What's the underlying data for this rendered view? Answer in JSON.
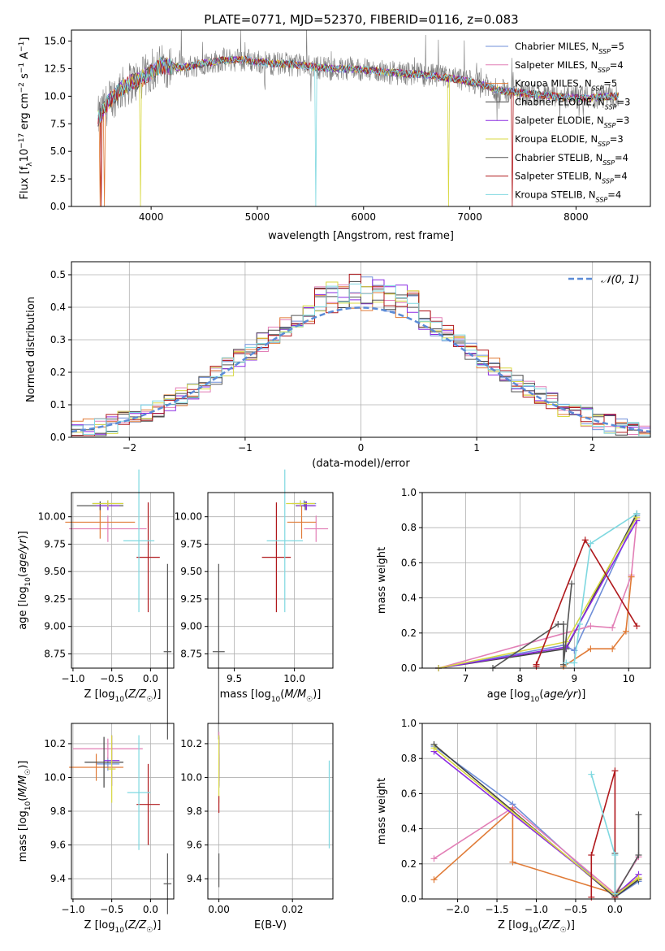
{
  "figure_title": "PLATE=0771, MJD=52370, FIBERID=0116, z=0.083",
  "colors": {
    "Chabrier MILES": "#6f8fd8",
    "Salpeter MILES": "#e27fb6",
    "Kroupa MILES": "#e07b37",
    "Chabrier ELODIE": "#444444",
    "Salpeter ELODIE": "#8a2be2",
    "Kroupa ELODIE": "#d8d840",
    "Chabrier STELIB": "#555555",
    "Salpeter STELIB": "#b0181c",
    "Kroupa STELIB": "#7fd8e0"
  },
  "chart_data": [
    {
      "type": "line",
      "title": "PLATE=0771, MJD=52370, FIBERID=0116, z=0.083",
      "xlabel": "wavelength [Angstrom, rest frame]",
      "ylabel": "Flux [f_λ 10^-17 erg cm^-2 s^-1 A^-1]",
      "xlim": [
        3250,
        8700
      ],
      "ylim": [
        0,
        16
      ],
      "xticks": [
        "4000",
        "5000",
        "6000",
        "7000",
        "8000"
      ],
      "yticks": [
        "0.0",
        "2.5",
        "5.0",
        "7.5",
        "10.0",
        "12.5",
        "15.0"
      ],
      "legend_position": "top-right",
      "legend": [
        "Chabrier MILES, N_SSP=5",
        "Salpeter MILES, N_SSP=4",
        "Kroupa MILES, N_SSP=5",
        "Chabrier ELODIE, N_SSP=3",
        "Salpeter ELODIE, N_SSP=3",
        "Kroupa ELODIE, N_SSP=3",
        "Chabrier STELIB, N_SSP=4",
        "Salpeter STELIB, N_SSP=4",
        "Kroupa STELIB, N_SSP=4"
      ],
      "continuum": [
        [
          3500,
          8.0
        ],
        [
          3600,
          9.5
        ],
        [
          3700,
          10.5
        ],
        [
          3800,
          11.2
        ],
        [
          3900,
          11.5
        ],
        [
          4000,
          12.2
        ],
        [
          4100,
          12.8
        ],
        [
          4300,
          12.6
        ],
        [
          4500,
          13.0
        ],
        [
          4700,
          13.3
        ],
        [
          4900,
          13.3
        ],
        [
          5100,
          13.0
        ],
        [
          5300,
          12.9
        ],
        [
          5500,
          12.7
        ],
        [
          5700,
          12.5
        ],
        [
          5900,
          12.5
        ],
        [
          6100,
          12.3
        ],
        [
          6300,
          12.1
        ],
        [
          6500,
          12.0
        ],
        [
          6700,
          11.8
        ],
        [
          6900,
          11.5
        ],
        [
          7100,
          11.1
        ],
        [
          7300,
          10.5
        ],
        [
          7500,
          10.3
        ],
        [
          7700,
          10.1
        ],
        [
          7900,
          9.9
        ],
        [
          8100,
          9.8
        ],
        [
          8300,
          10.0
        ],
        [
          8400,
          10.0
        ]
      ],
      "data": "observed spectrum (grey) with best-fit models"
    },
    {
      "type": "line",
      "xlabel": "(data-model)/error",
      "ylabel": "Normed distribution",
      "xlim": [
        -2.5,
        2.5
      ],
      "ylim": [
        0,
        0.54
      ],
      "xticks": [
        "−2",
        "−1",
        "0",
        "1",
        "2"
      ],
      "yticks": [
        "0.0",
        "0.1",
        "0.2",
        "0.3",
        "0.4",
        "0.5"
      ],
      "legend_position": "top-right",
      "reference_label": "𝒩(0, 1)",
      "reference_curve": "standard normal pdf"
    },
    {
      "type": "scatter",
      "xlabel": "Z [log10(Z/Z☉)]",
      "ylabel": "age  [log10(age/yr)]",
      "xlim": [
        -1.02,
        0.3
      ],
      "ylim": [
        8.62,
        10.22
      ],
      "xticks": [
        "−1.0",
        "−0.5",
        "0.0"
      ],
      "yticks": [
        "8.75",
        "9.00",
        "9.25",
        "9.50",
        "9.75",
        "10.00"
      ],
      "points": [
        {
          "model": "Chabrier MILES",
          "x": -0.55,
          "y": 10.12,
          "xerr": 0.2,
          "yerr": 0.03
        },
        {
          "model": "Salpeter MILES",
          "x": -0.55,
          "y": 9.89,
          "xerr": 0.5,
          "yerr": 0.12
        },
        {
          "model": "Kroupa MILES",
          "x": -0.65,
          "y": 9.95,
          "xerr": 0.45,
          "yerr": 0.15
        },
        {
          "model": "Chabrier ELODIE",
          "x": -0.65,
          "y": 10.1,
          "xerr": 0.3,
          "yerr": 0.04
        },
        {
          "model": "Salpeter ELODIE",
          "x": -0.55,
          "y": 10.1,
          "xerr": 0.15,
          "yerr": 0.04
        },
        {
          "model": "Kroupa ELODIE",
          "x": -0.55,
          "y": 10.12,
          "xerr": 0.2,
          "yerr": 0.03
        },
        {
          "model": "Chabrier STELIB",
          "x": 0.22,
          "y": 8.77,
          "xerr": 0.05,
          "yerr": 0.8
        },
        {
          "model": "Salpeter STELIB",
          "x": -0.03,
          "y": 9.63,
          "xerr": 0.15,
          "yerr": 0.5
        },
        {
          "model": "Kroupa STELIB",
          "x": -0.15,
          "y": 9.78,
          "xerr": 0.2,
          "yerr": 0.65
        }
      ]
    },
    {
      "type": "scatter",
      "xlabel": "mass [log10(M/M☉)]",
      "ylabel": "",
      "xlim": [
        9.28,
        10.32
      ],
      "ylim": [
        8.62,
        10.22
      ],
      "xticks": [
        "9.5",
        "10.0"
      ],
      "yticks": [
        "8.75",
        "9.00",
        "9.25",
        "9.50",
        "9.75",
        "10.00"
      ],
      "points": [
        {
          "model": "Chabrier MILES",
          "x": 10.08,
          "y": 10.12,
          "xerr": 0.1,
          "yerr": 0.03
        },
        {
          "model": "Salpeter MILES",
          "x": 10.18,
          "y": 9.89,
          "xerr": 0.1,
          "yerr": 0.12
        },
        {
          "model": "Kroupa MILES",
          "x": 10.06,
          "y": 9.95,
          "xerr": 0.12,
          "yerr": 0.15
        },
        {
          "model": "Chabrier ELODIE",
          "x": 10.09,
          "y": 10.1,
          "xerr": 0.08,
          "yerr": 0.04
        },
        {
          "model": "Salpeter ELODIE",
          "x": 10.1,
          "y": 10.1,
          "xerr": 0.08,
          "yerr": 0.04
        },
        {
          "model": "Kroupa ELODIE",
          "x": 10.05,
          "y": 10.12,
          "xerr": 0.12,
          "yerr": 0.03
        },
        {
          "model": "Chabrier STELIB",
          "x": 9.37,
          "y": 8.77,
          "xerr": 0.05,
          "yerr": 0.8
        },
        {
          "model": "Salpeter STELIB",
          "x": 9.85,
          "y": 9.63,
          "xerr": 0.12,
          "yerr": 0.5
        },
        {
          "model": "Kroupa STELIB",
          "x": 9.92,
          "y": 9.78,
          "xerr": 0.15,
          "yerr": 0.65
        }
      ]
    },
    {
      "type": "line",
      "xlabel": "age  [log10(age/yr)]",
      "ylabel": "mass weight",
      "xlim": [
        6.2,
        10.4
      ],
      "ylim": [
        0,
        1.0
      ],
      "xticks": [
        "7",
        "8",
        "9",
        "10"
      ],
      "yticks": [
        "0.0",
        "0.2",
        "0.4",
        "0.6",
        "0.8",
        "1.0"
      ],
      "series": [
        {
          "model": "Chabrier MILES",
          "x": [
            6.5,
            8.8,
            9.0,
            10.15
          ],
          "y": [
            0.0,
            0.13,
            0.1,
            0.87
          ]
        },
        {
          "model": "Salpeter MILES",
          "x": [
            6.5,
            9.3,
            9.7,
            10.05,
            10.15
          ],
          "y": [
            0.0,
            0.24,
            0.23,
            0.53,
            0.85
          ]
        },
        {
          "model": "Kroupa MILES",
          "x": [
            8.8,
            9.3,
            9.7,
            9.95,
            10.05
          ],
          "y": [
            0.01,
            0.11,
            0.11,
            0.21,
            0.52
          ]
        },
        {
          "model": "Chabrier ELODIE",
          "x": [
            6.5,
            8.85,
            10.15
          ],
          "y": [
            0.0,
            0.11,
            0.88
          ]
        },
        {
          "model": "Salpeter ELODIE",
          "x": [
            6.5,
            8.85,
            10.15
          ],
          "y": [
            0.0,
            0.12,
            0.84
          ]
        },
        {
          "model": "Kroupa ELODIE",
          "x": [
            6.5,
            8.85,
            10.15
          ],
          "y": [
            0.0,
            0.15,
            0.86
          ]
        },
        {
          "model": "Chabrier STELIB",
          "x": [
            7.5,
            8.7,
            8.8,
            8.8,
            8.95
          ],
          "y": [
            0.0,
            0.25,
            0.25,
            0.02,
            0.48
          ]
        },
        {
          "model": "Salpeter STELIB",
          "x": [
            8.3,
            8.3,
            9.2,
            10.15
          ],
          "y": [
            0.01,
            0.02,
            0.73,
            0.24
          ]
        },
        {
          "model": "Kroupa STELIB",
          "x": [
            8.85,
            9.0,
            9.1,
            9.3,
            10.15
          ],
          "y": [
            0.03,
            0.03,
            0.25,
            0.71,
            0.88
          ]
        }
      ]
    },
    {
      "type": "scatter",
      "xlabel": "Z [log10(Z/Z☉)]",
      "ylabel": "mass [log10(M/M☉)]",
      "xlim": [
        -1.02,
        0.3
      ],
      "ylim": [
        9.28,
        10.32
      ],
      "xticks": [
        "−1.0",
        "−0.5",
        "0.0"
      ],
      "yticks": [
        "9.4",
        "9.6",
        "9.8",
        "10.0",
        "10.2"
      ],
      "points": [
        {
          "model": "Chabrier MILES",
          "x": -0.55,
          "y": 10.08,
          "xerr": 0.15,
          "yerr": 0.04
        },
        {
          "model": "Salpeter MILES",
          "x": -0.55,
          "y": 10.17,
          "xerr": 0.45,
          "yerr": 0.06
        },
        {
          "model": "Kroupa MILES",
          "x": -0.7,
          "y": 10.06,
          "xerr": 0.35,
          "yerr": 0.08
        },
        {
          "model": "Chabrier ELODIE",
          "x": -0.6,
          "y": 10.09,
          "xerr": 0.25,
          "yerr": 0.15
        },
        {
          "model": "Salpeter ELODIE",
          "x": -0.5,
          "y": 10.1,
          "xerr": 0.1,
          "yerr": 0.15
        },
        {
          "model": "Kroupa ELODIE",
          "x": -0.5,
          "y": 10.05,
          "xerr": 0.05,
          "yerr": 0.2
        },
        {
          "model": "Chabrier STELIB",
          "x": 0.22,
          "y": 9.37,
          "xerr": 0.05,
          "yerr": 0.18
        },
        {
          "model": "Salpeter STELIB",
          "x": -0.03,
          "y": 9.84,
          "xerr": 0.15,
          "yerr": 0.24
        },
        {
          "model": "Kroupa STELIB",
          "x": -0.15,
          "y": 9.91,
          "xerr": 0.15,
          "yerr": 0.34
        }
      ]
    },
    {
      "type": "scatter",
      "xlabel": "E(B-V)",
      "ylabel": "",
      "xlim": [
        -0.003,
        0.031
      ],
      "ylim": [
        9.28,
        10.32
      ],
      "xticks": [
        "0.00",
        "0.02"
      ],
      "yticks": [
        "9.4",
        "9.6",
        "9.8",
        "10.0",
        "10.2"
      ],
      "points": [
        {
          "model": "Chabrier MILES",
          "x": 0.0,
          "y": 10.08,
          "yerr": 0.04
        },
        {
          "model": "Salpeter MILES",
          "x": 0.0,
          "y": 10.17,
          "yerr": 0.1
        },
        {
          "model": "Kroupa MILES",
          "x": 0.0,
          "y": 10.06,
          "yerr": 0.08
        },
        {
          "model": "Chabrier ELODIE",
          "x": 0.0,
          "y": 10.09,
          "yerr": 0.15
        },
        {
          "model": "Salpeter ELODIE",
          "x": 0.0,
          "y": 10.1,
          "yerr": 0.15
        },
        {
          "model": "Kroupa ELODIE",
          "x": 0.0,
          "y": 10.05,
          "yerr": 0.2
        },
        {
          "model": "Chabrier STELIB",
          "x": 0.0,
          "y": 9.45,
          "yerr": 0.1
        },
        {
          "model": "Salpeter STELIB",
          "x": 0.0,
          "y": 9.84,
          "yerr": 0.05
        },
        {
          "model": "Kroupa STELIB",
          "x": 0.03,
          "y": 9.84,
          "yerr": 0.26
        }
      ]
    },
    {
      "type": "line",
      "xlabel": "Z [log10(Z/Z☉)]",
      "ylabel": "mass weight",
      "xlim": [
        -2.45,
        0.45
      ],
      "ylim": [
        0,
        1.0
      ],
      "xticks": [
        "−2.0",
        "−1.5",
        "−1.0",
        "−0.5",
        "0.0"
      ],
      "yticks": [
        "0.0",
        "0.2",
        "0.4",
        "0.6",
        "0.8",
        "1.0"
      ],
      "series": [
        {
          "model": "Chabrier MILES",
          "x": [
            -2.3,
            -1.3,
            0.0,
            0.3
          ],
          "y": [
            0.87,
            0.54,
            0.01,
            0.1
          ]
        },
        {
          "model": "Salpeter MILES",
          "x": [
            -2.3,
            -1.3,
            0.0,
            0.3
          ],
          "y": [
            0.23,
            0.52,
            0.03,
            0.24
          ]
        },
        {
          "model": "Kroupa MILES",
          "x": [
            -2.3,
            -1.3,
            -1.3,
            0.0,
            0.3
          ],
          "y": [
            0.11,
            0.51,
            0.21,
            0.03,
            0.12
          ]
        },
        {
          "model": "Chabrier ELODIE",
          "x": [
            -2.3,
            0.0,
            0.3
          ],
          "y": [
            0.88,
            0.01,
            0.11
          ]
        },
        {
          "model": "Salpeter ELODIE",
          "x": [
            -2.3,
            0.0,
            0.3
          ],
          "y": [
            0.84,
            0.02,
            0.14
          ]
        },
        {
          "model": "Kroupa ELODIE",
          "x": [
            -2.3,
            0.0,
            0.3
          ],
          "y": [
            0.86,
            0.02,
            0.12
          ]
        },
        {
          "model": "Chabrier STELIB",
          "x": [
            0.0,
            0.0,
            0.3,
            0.3
          ],
          "y": [
            0.26,
            0.02,
            0.25,
            0.48
          ]
        },
        {
          "model": "Salpeter STELIB",
          "x": [
            -0.3,
            -0.3,
            0.0,
            0.0
          ],
          "y": [
            0.01,
            0.25,
            0.73,
            0.01
          ]
        },
        {
          "model": "Kroupa STELIB",
          "x": [
            -0.3,
            0.0,
            0.0
          ],
          "y": [
            0.71,
            0.25,
            0.03
          ]
        }
      ]
    }
  ]
}
